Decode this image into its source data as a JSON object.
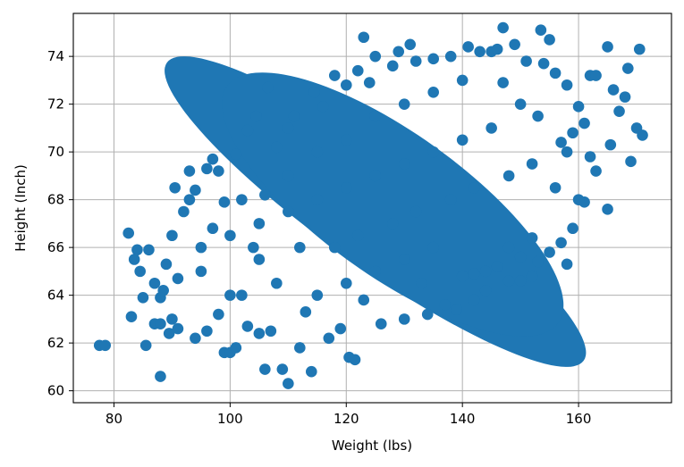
{
  "chart_data": {
    "type": "scatter",
    "title": "",
    "xlabel": "Weight (lbs)",
    "ylabel": "Height (Inch)",
    "xlim": [
      73.0,
      176.0
    ],
    "ylim": [
      59.5,
      75.8
    ],
    "xticks": [
      80,
      100,
      120,
      140,
      160
    ],
    "yticks": [
      60,
      62,
      64,
      66,
      68,
      70,
      72,
      74
    ],
    "grid": true,
    "marker_color": "#1f77b4",
    "series": [
      {
        "points": [
          [
            77.5,
            61.9
          ],
          [
            78.5,
            61.9
          ],
          [
            82.5,
            66.6
          ],
          [
            83.0,
            63.1
          ],
          [
            83.5,
            65.5
          ],
          [
            84.0,
            65.9
          ],
          [
            84.5,
            65.0
          ],
          [
            85.0,
            63.9
          ],
          [
            85.5,
            61.9
          ],
          [
            86.0,
            65.9
          ],
          [
            87.0,
            64.5
          ],
          [
            87.0,
            62.8
          ],
          [
            88.0,
            62.8
          ],
          [
            88.0,
            60.6
          ],
          [
            88.0,
            63.9
          ],
          [
            88.5,
            64.2
          ],
          [
            89.0,
            65.3
          ],
          [
            89.5,
            62.4
          ],
          [
            90.0,
            63.0
          ],
          [
            90.0,
            66.5
          ],
          [
            90.5,
            68.5
          ],
          [
            91.0,
            64.7
          ],
          [
            91.0,
            62.6
          ],
          [
            92.0,
            67.5
          ],
          [
            93.0,
            69.2
          ],
          [
            93.0,
            68.0
          ],
          [
            94.0,
            68.4
          ],
          [
            96.0,
            69.3
          ],
          [
            97.0,
            69.7
          ],
          [
            98.0,
            69.2
          ],
          [
            99.0,
            61.6
          ],
          [
            100.0,
            61.6
          ],
          [
            101.0,
            61.8
          ],
          [
            103.0,
            70.9
          ],
          [
            104.5,
            71.5
          ],
          [
            106.0,
            60.9
          ],
          [
            106.5,
            72.7
          ],
          [
            109.0,
            60.9
          ],
          [
            110.0,
            60.3
          ],
          [
            114.0,
            60.8
          ],
          [
            114.5,
            72.5
          ],
          [
            118.0,
            73.2
          ],
          [
            120.0,
            72.8
          ],
          [
            120.5,
            61.4
          ],
          [
            121.5,
            61.3
          ],
          [
            122.0,
            73.4
          ],
          [
            123.0,
            74.8
          ],
          [
            125.0,
            74.0
          ],
          [
            129.0,
            74.2
          ],
          [
            131.0,
            74.5
          ],
          [
            134.0,
            63.2
          ],
          [
            139.0,
            63.4
          ],
          [
            141.0,
            74.4
          ],
          [
            143.0,
            74.2
          ],
          [
            145.0,
            74.2
          ],
          [
            147.0,
            75.2
          ],
          [
            148.0,
            64.6
          ],
          [
            150.0,
            64.6
          ],
          [
            152.0,
            64.8
          ],
          [
            153.0,
            65.4
          ],
          [
            153.5,
            75.1
          ],
          [
            155.0,
            74.7
          ],
          [
            158.0,
            65.3
          ],
          [
            159.0,
            66.8
          ],
          [
            162.0,
            73.2
          ],
          [
            163.0,
            73.2
          ],
          [
            163.0,
            69.2
          ],
          [
            165.0,
            74.4
          ],
          [
            165.0,
            67.6
          ],
          [
            165.5,
            70.3
          ],
          [
            166.0,
            72.6
          ],
          [
            167.0,
            71.7
          ],
          [
            168.0,
            72.3
          ],
          [
            168.5,
            73.5
          ],
          [
            169.0,
            69.6
          ],
          [
            170.0,
            71.0
          ],
          [
            170.5,
            74.3
          ],
          [
            171.0,
            70.7
          ],
          [
            94.0,
            62.2
          ],
          [
            96.0,
            62.5
          ],
          [
            98.0,
            63.2
          ],
          [
            95.0,
            65.0
          ],
          [
            97.0,
            66.8
          ],
          [
            99.0,
            67.9
          ],
          [
            101.0,
            69.9
          ],
          [
            103.0,
            62.7
          ],
          [
            105.0,
            62.4
          ],
          [
            107.0,
            62.5
          ],
          [
            102.0,
            64.0
          ],
          [
            104.0,
            66.0
          ],
          [
            106.0,
            68.2
          ],
          [
            108.0,
            70.2
          ],
          [
            110.0,
            71.0
          ],
          [
            112.0,
            61.8
          ],
          [
            111.0,
            71.5
          ],
          [
            116.0,
            71.9
          ],
          [
            117.0,
            62.2
          ],
          [
            119.0,
            62.6
          ],
          [
            124.0,
            72.9
          ],
          [
            126.0,
            62.8
          ],
          [
            128.0,
            73.6
          ],
          [
            130.0,
            63.0
          ],
          [
            132.0,
            73.8
          ],
          [
            135.0,
            73.9
          ],
          [
            137.0,
            63.6
          ],
          [
            138.0,
            74.0
          ],
          [
            142.0,
            63.8
          ],
          [
            144.0,
            64.2
          ],
          [
            146.0,
            74.3
          ],
          [
            149.0,
            74.5
          ],
          [
            151.0,
            73.8
          ],
          [
            154.0,
            73.7
          ],
          [
            156.0,
            73.3
          ],
          [
            157.0,
            66.2
          ],
          [
            158.0,
            72.8
          ],
          [
            160.0,
            71.9
          ],
          [
            161.0,
            67.9
          ],
          [
            162.0,
            69.8
          ],
          [
            155.0,
            65.8
          ],
          [
            156.0,
            68.5
          ],
          [
            157.0,
            70.4
          ],
          [
            159.0,
            70.8
          ],
          [
            160.0,
            68.0
          ],
          [
            161.0,
            71.2
          ],
          [
            152.0,
            66.4
          ],
          [
            150.0,
            65.6
          ],
          [
            148.0,
            66.0
          ],
          [
            146.0,
            65.2
          ],
          [
            144.0,
            65.0
          ],
          [
            142.0,
            64.9
          ],
          [
            140.0,
            64.8
          ],
          [
            147.0,
            72.9
          ],
          [
            150.0,
            72.0
          ],
          [
            153.0,
            71.5
          ],
          [
            145.0,
            71.0
          ],
          [
            140.0,
            70.5
          ],
          [
            135.0,
            70.0
          ],
          [
            130.0,
            69.5
          ],
          [
            125.0,
            69.0
          ],
          [
            120.0,
            68.5
          ],
          [
            115.0,
            68.0
          ],
          [
            110.0,
            67.5
          ],
          [
            105.0,
            67.0
          ],
          [
            100.0,
            66.5
          ],
          [
            95.0,
            66.0
          ],
          [
            102.0,
            68.0
          ],
          [
            108.0,
            64.5
          ],
          [
            112.0,
            66.0
          ],
          [
            118.0,
            66.0
          ],
          [
            122.0,
            66.5
          ],
          [
            128.0,
            67.0
          ],
          [
            132.0,
            67.5
          ],
          [
            138.0,
            68.0
          ],
          [
            142.0,
            68.5
          ],
          [
            148.0,
            69.0
          ],
          [
            152.0,
            69.5
          ],
          [
            158.0,
            70.0
          ],
          [
            115.0,
            64.0
          ],
          [
            120.0,
            64.5
          ],
          [
            125.0,
            65.0
          ],
          [
            130.0,
            65.5
          ],
          [
            135.0,
            66.0
          ],
          [
            125.0,
            71.5
          ],
          [
            130.0,
            72.0
          ],
          [
            135.0,
            72.5
          ],
          [
            140.0,
            73.0
          ],
          [
            120.0,
            70.5
          ],
          [
            115.0,
            70.0
          ],
          [
            110.0,
            69.0
          ],
          [
            105.0,
            65.5
          ],
          [
            100.0,
            64.0
          ],
          [
            113.0,
            63.3
          ],
          [
            123.0,
            63.8
          ],
          [
            133.0,
            64.5
          ]
        ]
      }
    ]
  }
}
